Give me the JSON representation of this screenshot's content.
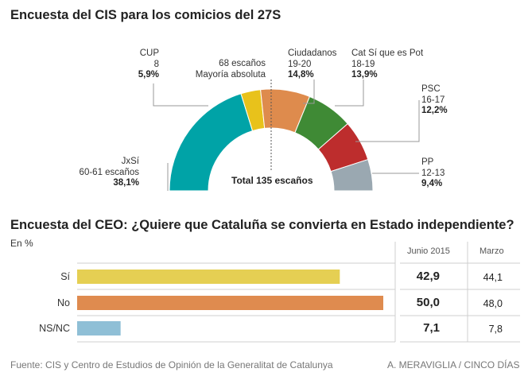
{
  "chart_data": [
    {
      "type": "half-donut",
      "title": "Encuesta del CIS para los comicios del 27S",
      "center_label": "Total 135 escaños",
      "majority_label": [
        "68 escaños",
        "Mayoría absoluta"
      ],
      "parties": [
        {
          "name": "JxSí",
          "seats": "60-61 escaños",
          "pct": "38,1%",
          "value": 38.1,
          "color": "#00a3a7"
        },
        {
          "name": "CUP",
          "seats": "8",
          "pct": "5,9%",
          "value": 5.9,
          "color": "#e8c21b"
        },
        {
          "name": "Ciudadanos",
          "seats": "19-20",
          "pct": "14,8%",
          "value": 14.8,
          "color": "#de8b4d"
        },
        {
          "name": "Cat Sí que es Pot",
          "seats": "18-19",
          "pct": "13,9%",
          "value": 13.9,
          "color": "#3f8a35"
        },
        {
          "name": "PSC",
          "seats": "16-17",
          "pct": "12,2%",
          "value": 12.2,
          "color": "#bd2d2d"
        },
        {
          "name": "PP",
          "seats": "12-13",
          "pct": "9,4%",
          "value": 9.4,
          "color": "#9aa8b1"
        }
      ]
    },
    {
      "type": "bar",
      "title": "Encuesta del CEO: ¿Quiere que Cataluña se convierta en Estado independiente?",
      "unit_label": "En %",
      "col_headers": [
        "Junio 2015",
        "Marzo"
      ],
      "categories": [
        "Sí",
        "No",
        "NS/NC"
      ],
      "values": [
        42.9,
        50.0,
        7.1
      ],
      "labels_june": [
        "42,9",
        "50,0",
        "7,1"
      ],
      "labels_march": [
        "44,1",
        "48,0",
        "7,8"
      ],
      "colors": [
        "#e5cf53",
        "#df8b4f",
        "#8fbfd6"
      ],
      "xlim": [
        0,
        50
      ]
    }
  ],
  "footer": {
    "source": "Fuente: CIS y Centro de Estudios de Opinión de la Generalitat de Catalunya",
    "credit": "A. MERAVIGLIA / CINCO DÍAS"
  }
}
